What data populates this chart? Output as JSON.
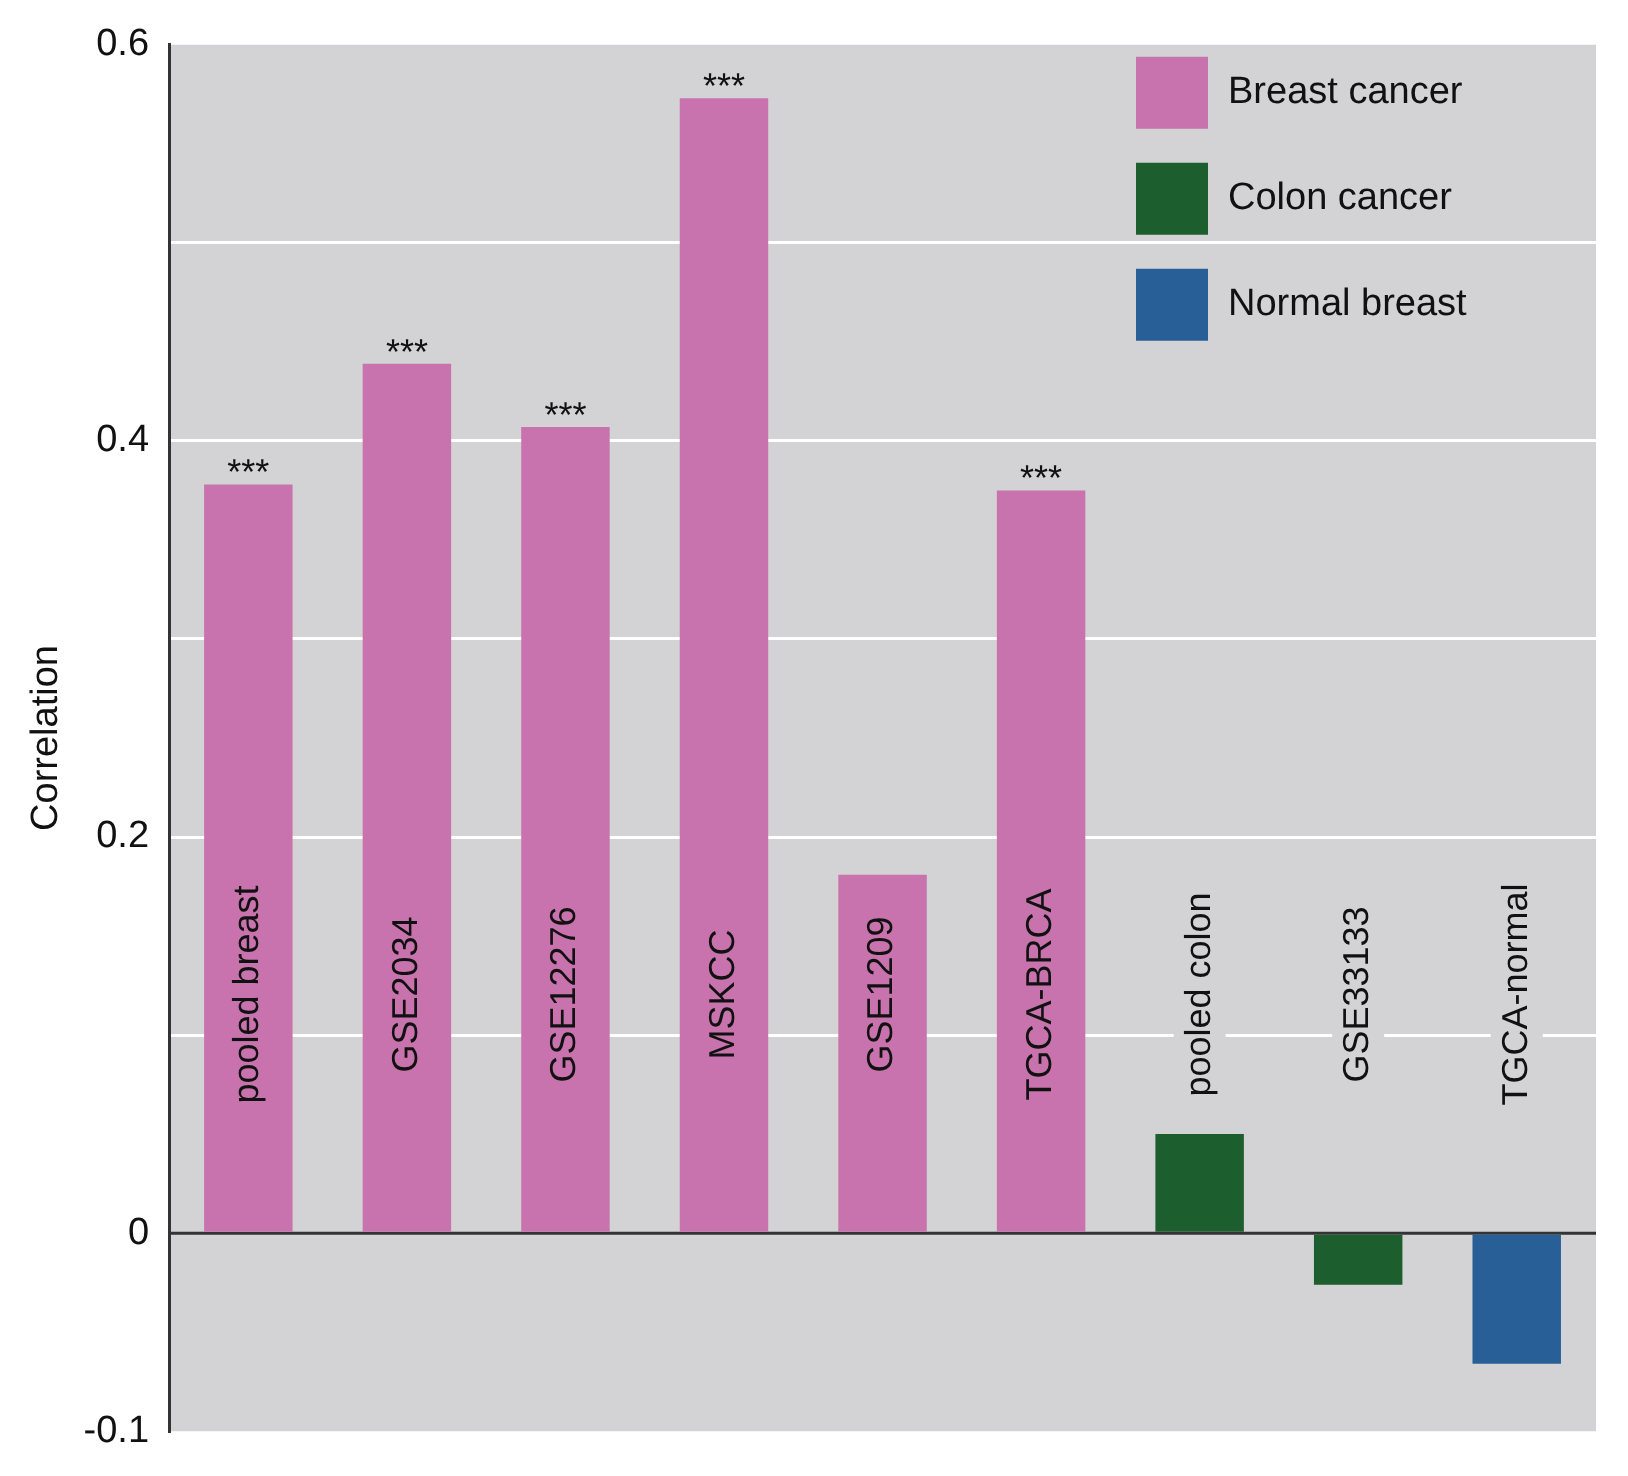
{
  "chart_data": {
    "type": "bar",
    "ylabel": "Correlation",
    "categories": [
      "pooled breast",
      "GSE2034",
      "GSE12276",
      "MSKCC",
      "GSE1209",
      "TGCA-BRCA",
      "pooled colon",
      "GSE33133",
      "TGCA-normal"
    ],
    "series": [
      {
        "name": "Breast cancer",
        "color": "#c873ae",
        "values": [
          0.378,
          0.439,
          0.407,
          0.573,
          0.181,
          0.375,
          null,
          null,
          null
        ]
      },
      {
        "name": "Colon cancer",
        "color": "#1d5e2e",
        "values": [
          null,
          null,
          null,
          null,
          null,
          null,
          0.05,
          -0.026,
          null
        ]
      },
      {
        "name": "Normal breast",
        "color": "#285f97",
        "values": [
          null,
          null,
          null,
          null,
          null,
          null,
          null,
          null,
          -0.066
        ]
      }
    ],
    "ylim": [
      -0.1,
      0.6
    ],
    "yticks": [
      -0.1,
      0,
      {
        "value": 0.1,
        "label": null
      },
      0.2,
      {
        "value": 0.3,
        "label": null
      },
      0.4,
      {
        "value": 0.5,
        "label": null
      },
      0.6
    ],
    "grid": "y",
    "legend": "top right",
    "annotations": [
      {
        "text": "***",
        "x": "pooled breast",
        "y": 0.378
      },
      {
        "text": "***",
        "x": "GSE2034",
        "y": 0.439
      },
      {
        "text": "***",
        "x": "GSE12276",
        "y": 0.407
      },
      {
        "text": "***",
        "x": "MSKCC",
        "y": 0.573
      },
      {
        "text": "***",
        "x": "TGCA-BRCA",
        "y": 0.375
      }
    ]
  }
}
